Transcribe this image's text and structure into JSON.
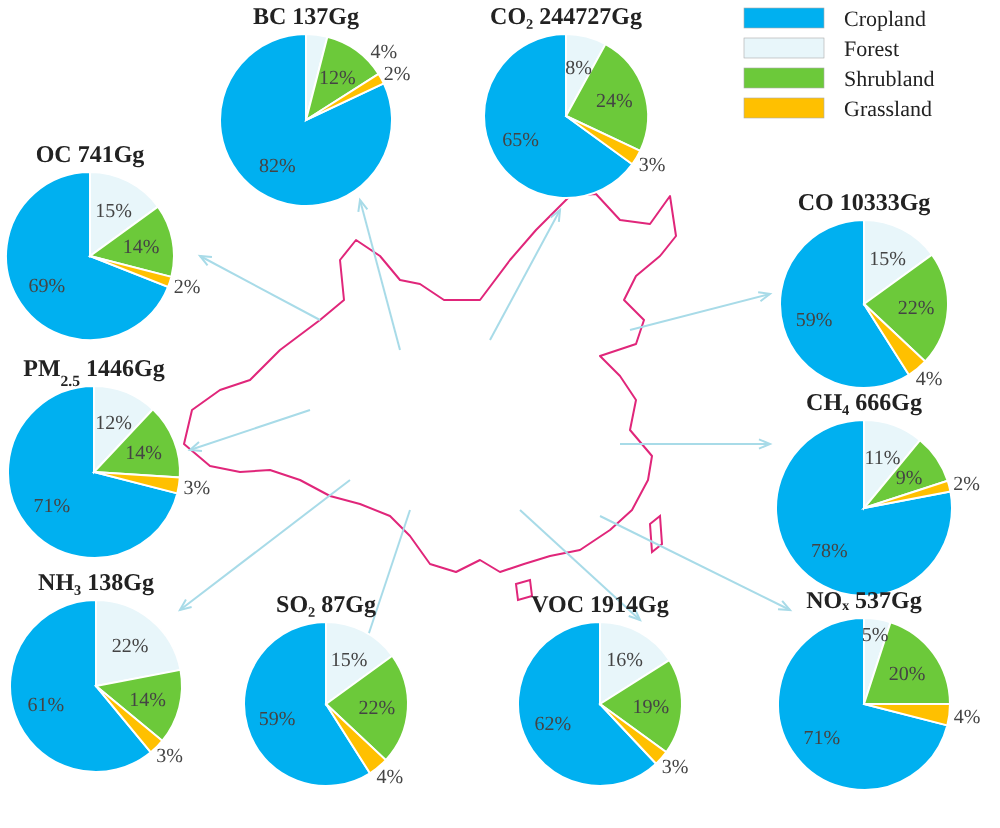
{
  "chart_data": [
    {
      "type": "pie",
      "title": "BC 137Gg",
      "categories": [
        "Cropland",
        "Forest",
        "Shrubland",
        "Grassland"
      ],
      "values": [
        82,
        4,
        12,
        2
      ],
      "value_labels": [
        "82%",
        "4%",
        "12%",
        "2%"
      ],
      "colors": [
        "#00b0f0",
        "#e8f6fa",
        "#6cc93a",
        "#ffc000"
      ],
      "legend": "top right"
    },
    {
      "type": "pie",
      "title": "CO₂ 244727Gg",
      "categories": [
        null,
        null,
        null,
        null
      ],
      "values": [
        65,
        8,
        24,
        3
      ],
      "value_labels": [
        "65%",
        "8%",
        "24%",
        "3%"
      ],
      "colors": [
        "#00b0f0",
        "#e8f6fa",
        "#6cc93a",
        "#ffc000"
      ]
    },
    {
      "type": "pie",
      "title": "OC 741Gg",
      "categories": [
        null,
        null,
        null,
        null
      ],
      "values": [
        69,
        15,
        14,
        2
      ],
      "value_labels": [
        "69%",
        "15%",
        "14%",
        "2%"
      ],
      "colors": [
        "#00b0f0",
        "#e8f6fa",
        "#6cc93a",
        "#ffc000"
      ]
    },
    {
      "type": "pie",
      "title": "CO 10333Gg",
      "categories": [
        null,
        null,
        null,
        null
      ],
      "values": [
        59,
        15,
        22,
        4
      ],
      "value_labels": [
        "59%",
        "15%",
        "22%",
        "4%"
      ],
      "colors": [
        "#00b0f0",
        "#e8f6fa",
        "#6cc93a",
        "#ffc000"
      ]
    },
    {
      "type": "pie",
      "title": "PM$_{2.5}$ 1446Gg",
      "categories": [
        null,
        null,
        null,
        null
      ],
      "values": [
        71,
        12,
        14,
        3
      ],
      "value_labels": [
        "71%",
        "12%",
        "14%",
        "3%"
      ],
      "colors": [
        "#00b0f0",
        "#e8f6fa",
        "#6cc93a",
        "#ffc000"
      ]
    },
    {
      "type": "pie",
      "title": "CH₄ 666Gg",
      "categories": [
        null,
        null,
        null,
        null
      ],
      "values": [
        78,
        11,
        9,
        2
      ],
      "value_labels": [
        "78%",
        "11%",
        "9%",
        "2%"
      ],
      "colors": [
        "#00b0f0",
        "#e8f6fa",
        "#6cc93a",
        "#ffc000"
      ]
    },
    {
      "type": "pie",
      "title": "NH₃ 138Gg",
      "categories": [
        null,
        null,
        null,
        null
      ],
      "values": [
        61,
        22,
        14,
        3
      ],
      "value_labels": [
        "61%",
        "22%",
        "14%",
        "3%"
      ],
      "colors": [
        "#00b0f0",
        "#e8f6fa",
        "#6cc93a",
        "#ffc000"
      ]
    },
    {
      "type": "pie",
      "title": "SO₂ 87Gg",
      "categories": [
        null,
        null,
        null,
        null
      ],
      "values": [
        59,
        15,
        22,
        4
      ],
      "value_labels": [
        "59%",
        "15%",
        "22%",
        "4%"
      ],
      "colors": [
        "#00b0f0",
        "#e8f6fa",
        "#6cc93a",
        "#ffc000"
      ]
    },
    {
      "type": "pie",
      "title": "VOC 1914Gg",
      "categories": [
        null,
        null,
        null,
        null
      ],
      "values": [
        62,
        16,
        19,
        3
      ],
      "value_labels": [
        "62%",
        "16%",
        "19%",
        "3%"
      ],
      "colors": [
        "#00b0f0",
        "#e8f6fa",
        "#6cc93a",
        "#ffc000"
      ]
    },
    {
      "type": "pie",
      "title": "NOₓ 537Gg",
      "categories": [
        null,
        null,
        null,
        null
      ],
      "values": [
        71,
        5,
        20,
        4
      ],
      "value_labels": [
        "71%",
        "5%",
        "20%",
        "4%"
      ],
      "colors": [
        "#00b0f0",
        "#e8f6fa",
        "#6cc93a",
        "#ffc000"
      ]
    }
  ]
}
